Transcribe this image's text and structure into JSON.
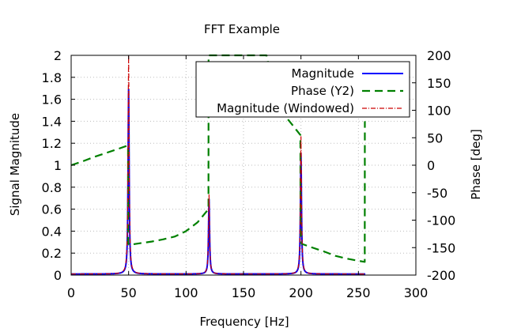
{
  "chart_data": {
    "type": "line",
    "title": "FFT Example",
    "xlabel": "Frequency [Hz]",
    "ylabel": "Signal Magnitude",
    "y2label": "Phase [deg]",
    "xlim": [
      0,
      300
    ],
    "ylim": [
      0,
      2
    ],
    "y2lim": [
      -200,
      200
    ],
    "xticks": [
      0,
      50,
      100,
      150,
      200,
      250,
      300
    ],
    "yticks": [
      0,
      0.2,
      0.4,
      0.6,
      0.8,
      1,
      1.2,
      1.4,
      1.6,
      1.8,
      2
    ],
    "y2ticks": [
      -200,
      -150,
      -100,
      -50,
      0,
      50,
      100,
      150,
      200
    ],
    "grid": true,
    "legend_position": "top-right",
    "series": [
      {
        "name": "Magnitude",
        "axis": "y",
        "color": "#0000ff",
        "style": "solid",
        "peaks": [
          {
            "x": 50,
            "y": 1.68
          },
          {
            "x": 120,
            "y": 0.68
          },
          {
            "x": 200,
            "y": 1.1
          }
        ],
        "xmax": 256
      },
      {
        "name": "Phase (Y2)",
        "axis": "y2",
        "color": "#008000",
        "style": "dashed",
        "x": [
          0,
          10,
          20,
          30,
          40,
          49.5,
          49.6,
          50.5,
          60,
          70,
          80,
          90,
          100,
          110,
          119.5,
          119.6,
          120.5,
          130,
          140,
          150,
          160,
          170,
          180,
          190,
          199.5,
          199.6,
          200.5,
          210,
          220,
          230,
          240,
          250,
          255.5,
          255.6
        ],
        "values": [
          0,
          7,
          15,
          22,
          29,
          36,
          -142,
          -145,
          -142,
          -139,
          -135,
          -130,
          -120,
          -104,
          -80,
          200,
          200,
          200,
          200,
          200,
          200,
          200,
          104,
          80,
          55,
          -120,
          -143,
          -150,
          -157,
          -165,
          -170,
          -174,
          -176,
          80
        ]
      },
      {
        "name": "Magnitude (Windowed)",
        "axis": "y",
        "color": "#cc0000",
        "style": "dashdot",
        "peaks": [
          {
            "x": 50,
            "y": 2.0
          },
          {
            "x": 120,
            "y": 0.72
          },
          {
            "x": 200,
            "y": 1.25
          }
        ],
        "xmax": 256
      }
    ]
  }
}
